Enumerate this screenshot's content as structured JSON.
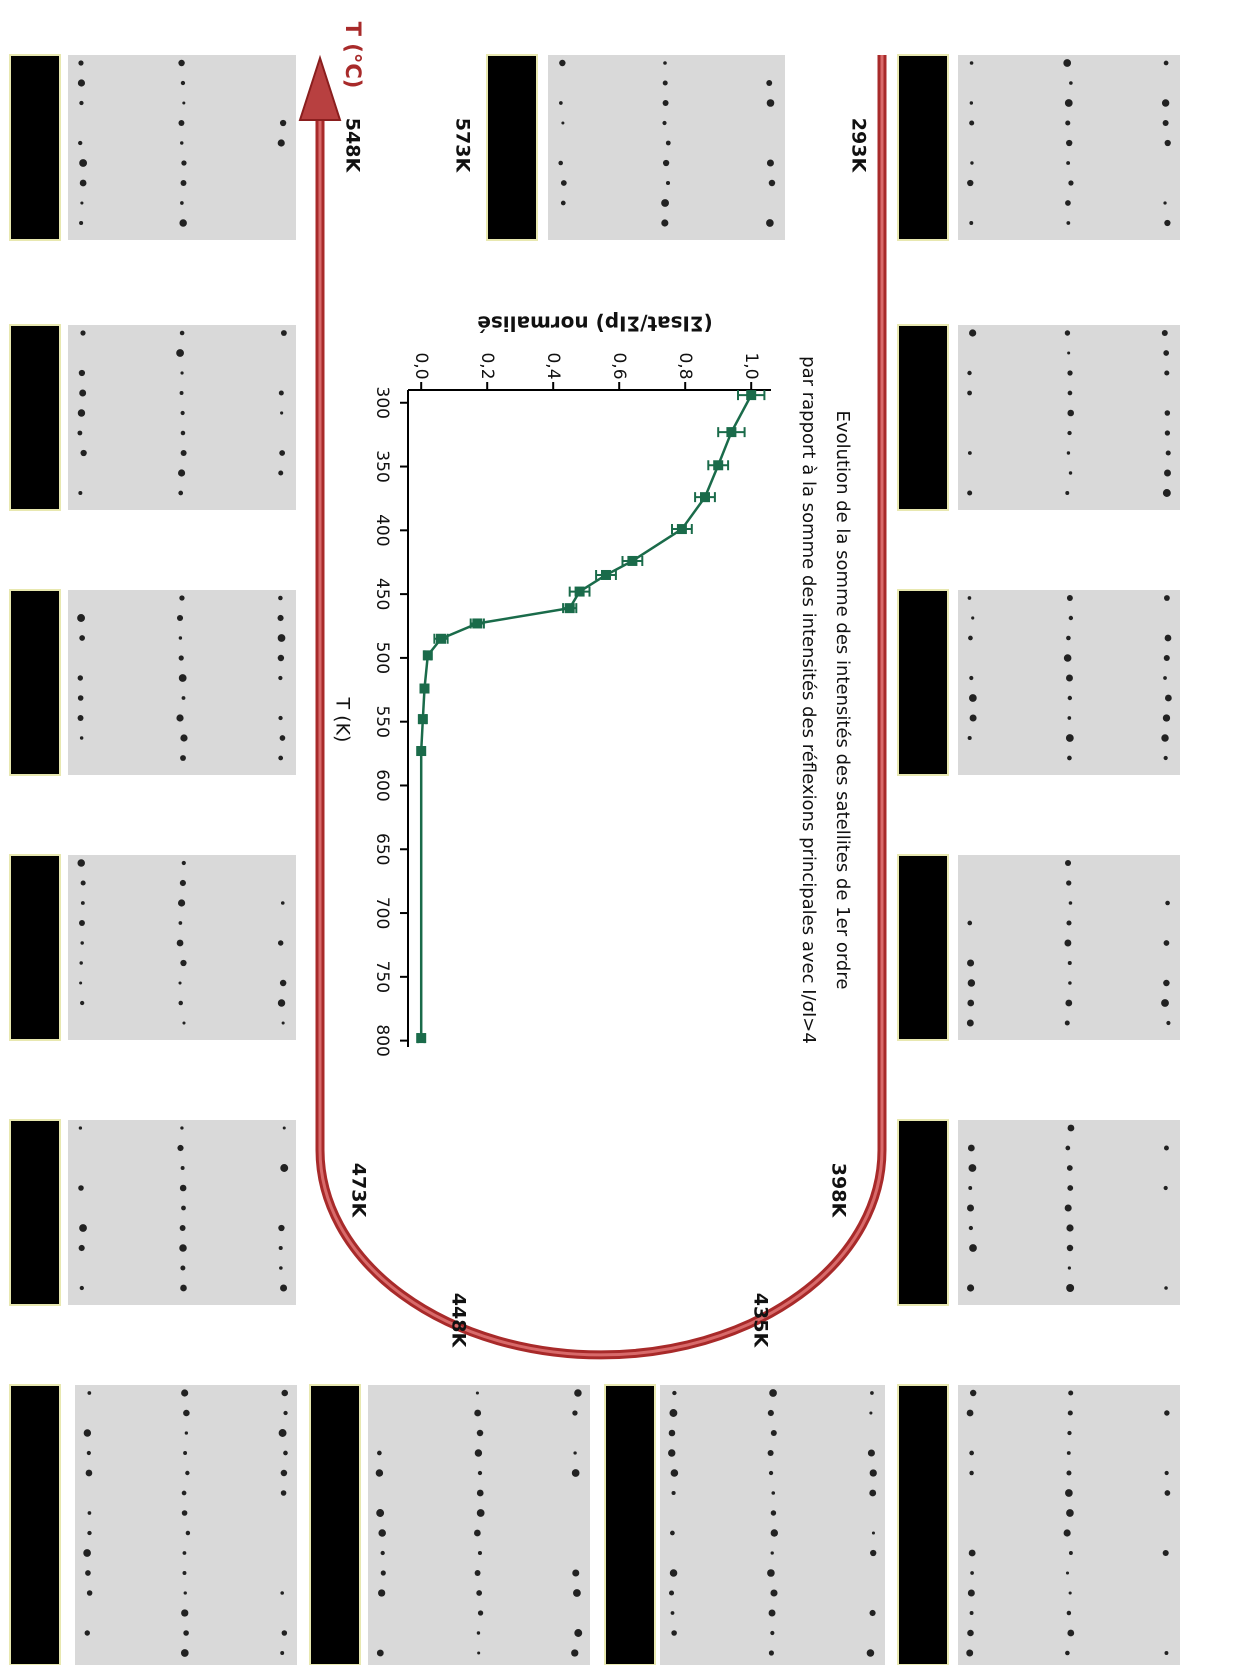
{
  "chart_data": {
    "type": "line",
    "title": "Evolution de la somme des intensités des satellites de 1er ordre",
    "subtitle": "par rapport à la somme des intensités des réflexions principales avec I/σI>4",
    "xlabel": "T (K)",
    "ylabel": "(ΣIsat/ΣIp) normalisé",
    "x": [
      294,
      323,
      349,
      374,
      399,
      424,
      435,
      448,
      461,
      473,
      485,
      498,
      524,
      548,
      573,
      798
    ],
    "series": [
      {
        "color": "#1a6b4a",
        "values": [
          1.0,
          0.94,
          0.9,
          0.86,
          0.79,
          0.64,
          0.56,
          0.48,
          0.45,
          0.17,
          0.06,
          0.02,
          0.01,
          0.005,
          0.0,
          0.0
        ],
        "errors": [
          0.04,
          0.04,
          0.03,
          0.03,
          0.03,
          0.03,
          0.03,
          0.03,
          0.02,
          0.02,
          0.02,
          0.01,
          0.01,
          0.01,
          0.01,
          0.01
        ]
      }
    ],
    "xlim": [
      290,
      805
    ],
    "xticks": [
      300,
      350,
      400,
      450,
      500,
      550,
      600,
      650,
      700,
      750,
      800
    ],
    "ylim": [
      -0.04,
      1.06
    ],
    "yticks": [
      {
        "value": 0,
        "label": "0,0"
      },
      {
        "value": 0.2,
        "label": "0,2"
      },
      {
        "value": 0.4,
        "label": "0,4"
      },
      {
        "value": 0.6,
        "label": "0,6"
      },
      {
        "value": 0.8,
        "label": "0,8"
      },
      {
        "value": 1.0,
        "label": "1,0"
      }
    ],
    "annotations": [
      "293K",
      "398K",
      "435K",
      "448K",
      "473K",
      "548K",
      "573K"
    ],
    "arrow_label": "T (°C)"
  }
}
